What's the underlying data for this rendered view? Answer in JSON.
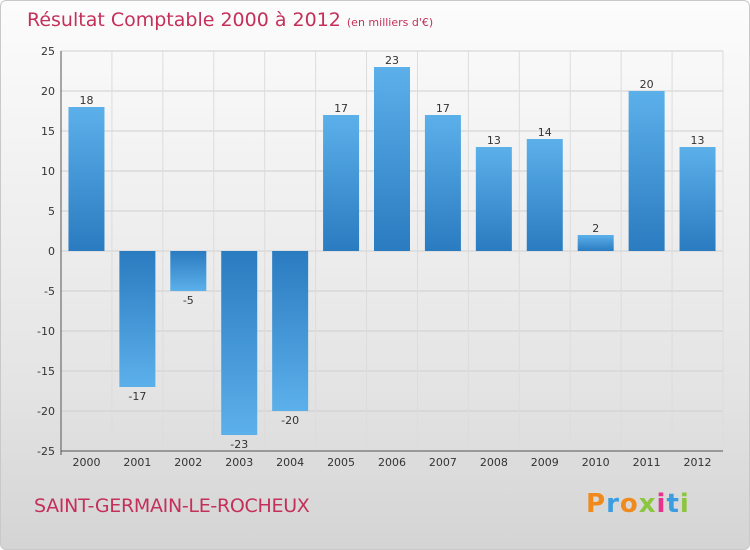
{
  "chart_data": {
    "type": "bar",
    "title": "Résultat Comptable 2000 à 2012",
    "subtitle": "(en milliers d'€)",
    "categories": [
      "2000",
      "2001",
      "2002",
      "2003",
      "2004",
      "2005",
      "2006",
      "2007",
      "2008",
      "2009",
      "2010",
      "2011",
      "2012"
    ],
    "values": [
      18,
      -17,
      -5,
      -23,
      -20,
      17,
      23,
      17,
      13,
      14,
      2,
      20,
      13
    ],
    "data_labels": [
      "18",
      "-17",
      "-5",
      "-23",
      "-20",
      "17",
      "23",
      "17",
      "13",
      "14",
      "2",
      "20",
      "13"
    ],
    "ylim": [
      -25,
      25
    ],
    "yticks": [
      -25,
      -20,
      -15,
      -10,
      -5,
      0,
      5,
      10,
      15,
      20,
      25
    ],
    "grid": true,
    "xlabel": "",
    "ylabel": "",
    "bar_color": "#3d8fd4"
  },
  "footer": {
    "commune": "SAINT-GERMAIN-LE-ROCHEUX",
    "brand": "Proxiti"
  },
  "colors": {
    "accent": "#c4305a",
    "brand_letters": [
      "#f08a1c",
      "#3a9de0",
      "#f08a1c",
      "#8cc63f",
      "#e8318c",
      "#3a9de0",
      "#8cc63f"
    ]
  }
}
